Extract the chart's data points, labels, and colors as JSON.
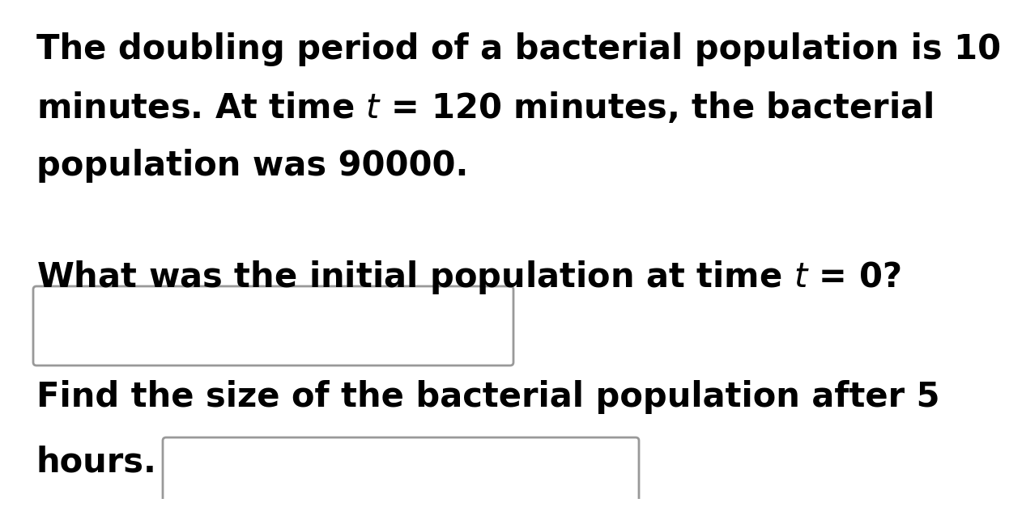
{
  "bg_color": "#ffffff",
  "text_color": "#000000",
  "box_color": "#999999",
  "line1": "The doubling period of a bacterial population is 10",
  "line2": "minutes. At time $t$ = 120 minutes, the bacterial",
  "line3": "population was 90000.",
  "line4": "What was the initial population at time $t$ = 0?",
  "line5": "Find the size of the bacterial population after 5",
  "line6": "hours.",
  "font_size": 30,
  "font_weight": "bold",
  "font_family": "DejaVu Sans Condensed"
}
